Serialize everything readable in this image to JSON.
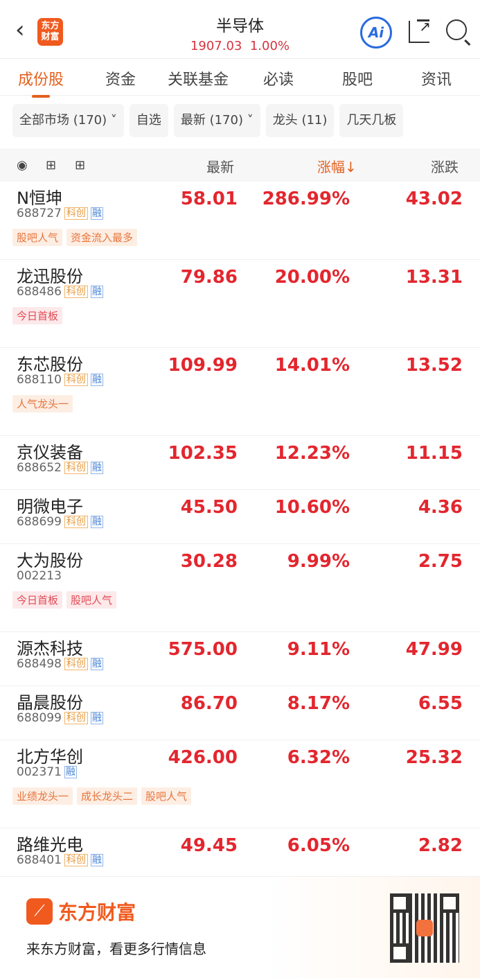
{
  "header": {
    "title": "半导体",
    "index_value": "1907.03",
    "index_change": "1.00%",
    "app_logo": "东方财富",
    "ai_label": "Ai"
  },
  "tabs": [
    "成份股",
    "资金",
    "关联基金",
    "必读",
    "股吧",
    "资讯"
  ],
  "filters": [
    "全部市场 (170) ˅",
    "自选",
    "最新 (170) ˅",
    "龙头 (11)",
    "几天几板"
  ],
  "table_header": {
    "latest": "最新",
    "pct": "涨幅↓",
    "change": "涨跌"
  },
  "rows": [
    {
      "name": "N恒坤",
      "code": "688727",
      "kc": "科创",
      "rz": "融",
      "price": "58.01",
      "pct": "286.99%",
      "chg": "43.02",
      "tags": [
        {
          "t": "股吧人气",
          "c": "o"
        },
        {
          "t": "资金流入最多",
          "c": "o"
        }
      ]
    },
    {
      "name": "龙迅股份",
      "code": "688486",
      "kc": "科创",
      "rz": "融",
      "price": "79.86",
      "pct": "20.00%",
      "chg": "13.31",
      "tags": [
        {
          "t": "今日首板",
          "c": "r"
        }
      ]
    },
    {
      "name": "东芯股份",
      "code": "688110",
      "kc": "科创",
      "rz": "融",
      "price": "109.99",
      "pct": "14.01%",
      "chg": "13.52",
      "tags": [
        {
          "t": "人气龙头一",
          "c": "o"
        }
      ]
    },
    {
      "name": "京仪装备",
      "code": "688652",
      "kc": "科创",
      "rz": "融",
      "price": "102.35",
      "pct": "12.23%",
      "chg": "11.15",
      "tags": []
    },
    {
      "name": "明微电子",
      "code": "688699",
      "kc": "科创",
      "rz": "融",
      "price": "45.50",
      "pct": "10.60%",
      "chg": "4.36",
      "tags": []
    },
    {
      "name": "大为股份",
      "code": "002213",
      "kc": "",
      "rz": "",
      "price": "30.28",
      "pct": "9.99%",
      "chg": "2.75",
      "tags": [
        {
          "t": "今日首板",
          "c": "r"
        },
        {
          "t": "股吧人气",
          "c": "r"
        }
      ]
    },
    {
      "name": "源杰科技",
      "code": "688498",
      "kc": "科创",
      "rz": "融",
      "price": "575.00",
      "pct": "9.11%",
      "chg": "47.99",
      "tags": []
    },
    {
      "name": "晶晨股份",
      "code": "688099",
      "kc": "科创",
      "rz": "融",
      "price": "86.70",
      "pct": "8.17%",
      "chg": "6.55",
      "tags": []
    },
    {
      "name": "北方华创",
      "code": "002371",
      "kc": "",
      "rz": "融",
      "price": "426.00",
      "pct": "6.32%",
      "chg": "25.32",
      "tags": [
        {
          "t": "业绩龙头一",
          "c": "o"
        },
        {
          "t": "成长龙头二",
          "c": "o"
        },
        {
          "t": "股吧人气",
          "c": "o"
        }
      ]
    },
    {
      "name": "路维光电",
      "code": "688401",
      "kc": "科创",
      "rz": "融",
      "price": "49.45",
      "pct": "6.05%",
      "chg": "2.82",
      "tags": []
    }
  ],
  "footer": {
    "brand": "东方财富",
    "slogan": "来东方财富，看更多行情信息"
  },
  "colors": {
    "accent": "#e4601e",
    "up": "#e3262e",
    "ai": "#2a6be0"
  }
}
